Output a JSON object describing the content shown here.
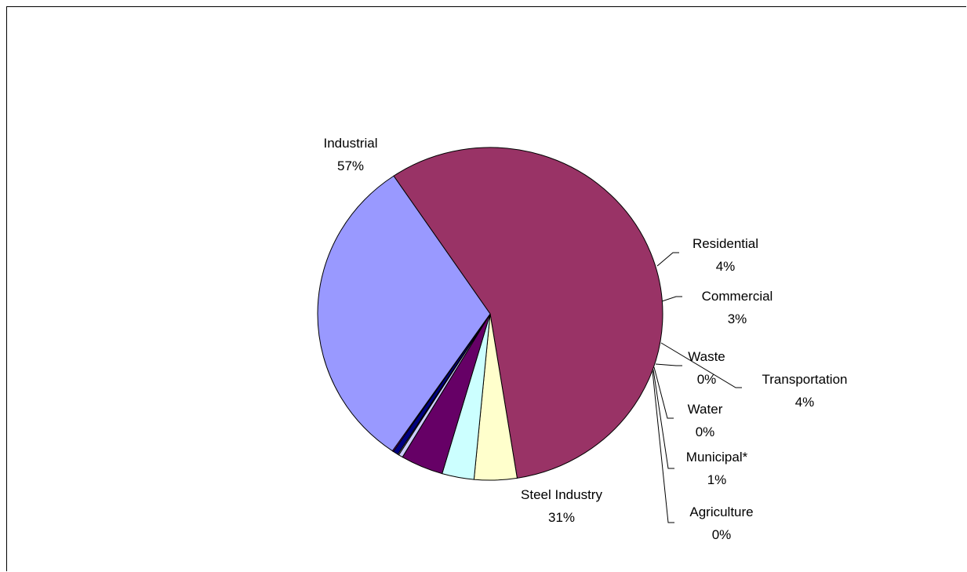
{
  "chart_data": {
    "type": "pie",
    "slices": [
      {
        "label": "Industrial",
        "pct_label": "57%",
        "value": 57,
        "color": "#993366"
      },
      {
        "label": "Residential",
        "pct_label": "4%",
        "value": 4,
        "color": "#FFFFCC"
      },
      {
        "label": "Commercial",
        "pct_label": "3%",
        "value": 3,
        "color": "#CCFFFF"
      },
      {
        "label": "Transportation",
        "pct_label": "4%",
        "value": 4,
        "color": "#660066"
      },
      {
        "label": "Waste",
        "pct_label": "0%",
        "value": 0.4,
        "color": "#CCCCFF"
      },
      {
        "label": "Water",
        "pct_label": "0%",
        "value": 0.1,
        "color": "#FFFFFF"
      },
      {
        "label": "Municipal*",
        "pct_label": "1%",
        "value": 0.5,
        "color": "#000080"
      },
      {
        "label": "Agriculture",
        "pct_label": "0%",
        "value": 0.1,
        "color": "#FF00FF"
      },
      {
        "label": "Steel Industry",
        "pct_label": "31%",
        "value": 31,
        "color": "#9999FF"
      }
    ]
  }
}
